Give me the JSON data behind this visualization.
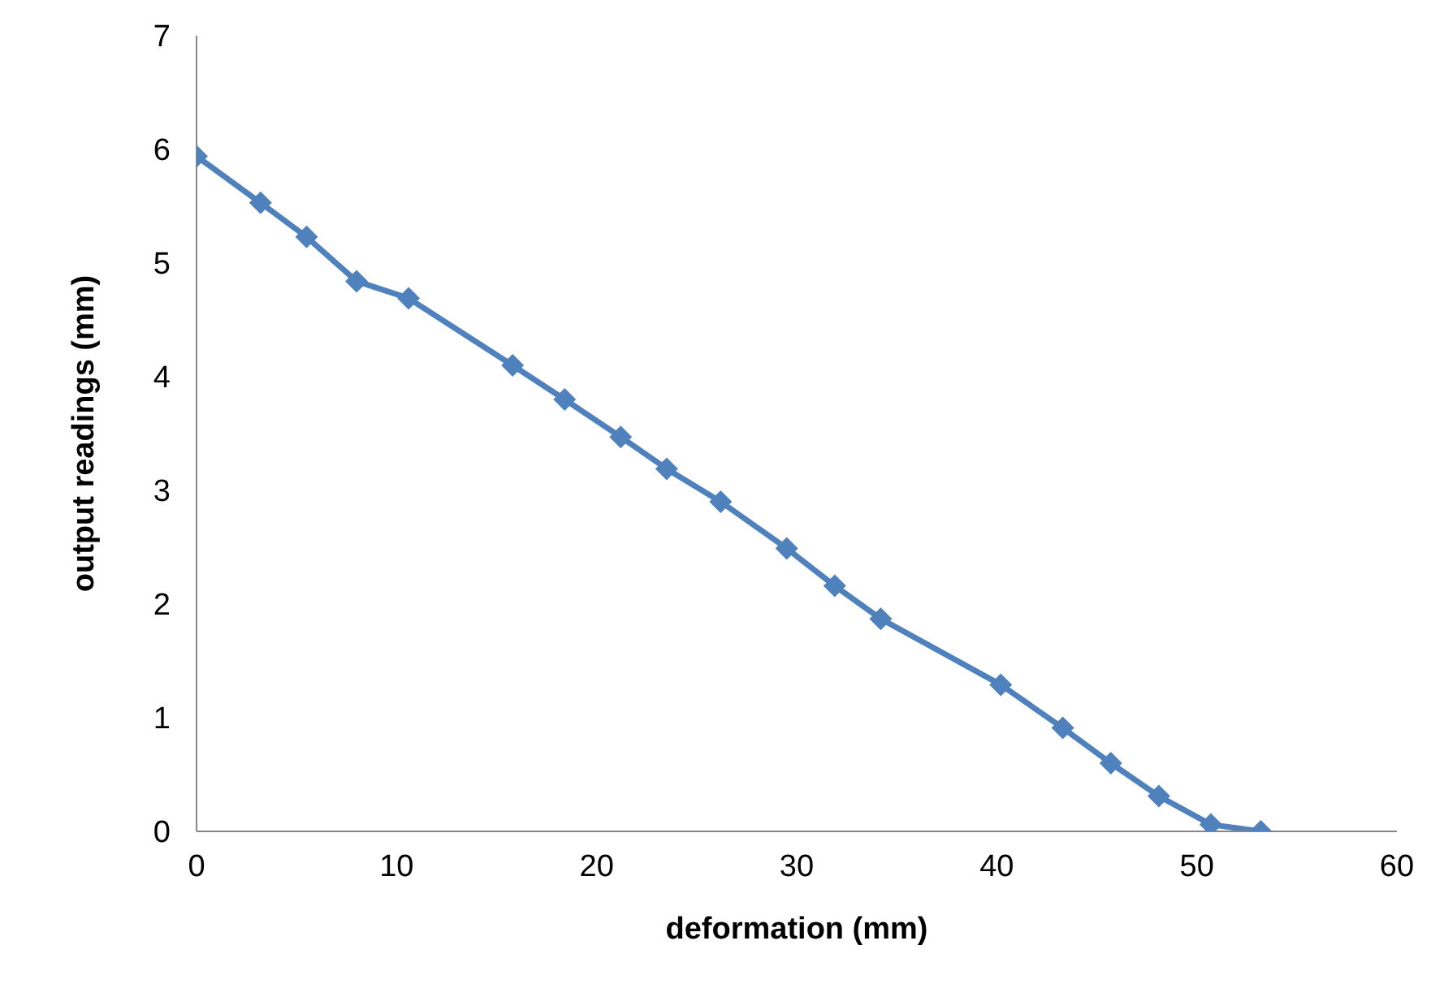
{
  "chart_data": {
    "type": "line",
    "xlabel": "deformation (mm)",
    "ylabel": "output readings (mm)",
    "x": [
      0,
      3.2,
      5.5,
      8,
      10.6,
      15.8,
      18.4,
      21.2,
      23.5,
      26.2,
      29.5,
      31.9,
      34.2,
      40.2,
      43.3,
      45.7,
      48.1,
      50.7,
      53.2
    ],
    "series": [
      {
        "color": "#4f81bd",
        "values": [
          5.94,
          5.53,
          5.23,
          4.84,
          4.69,
          4.1,
          3.8,
          3.47,
          3.19,
          2.9,
          2.49,
          2.16,
          1.87,
          1.29,
          0.91,
          0.6,
          0.31,
          0.06,
          0
        ]
      }
    ],
    "xlim": [
      0,
      60
    ],
    "xticks": [
      0,
      10,
      20,
      30,
      40,
      50,
      60
    ],
    "ylim": [
      0,
      7
    ],
    "yticks": [
      0,
      1,
      2,
      3,
      4,
      5,
      6,
      7
    ],
    "grid": false,
    "legend": false,
    "marker": "diamond",
    "line_style": "solid"
  }
}
